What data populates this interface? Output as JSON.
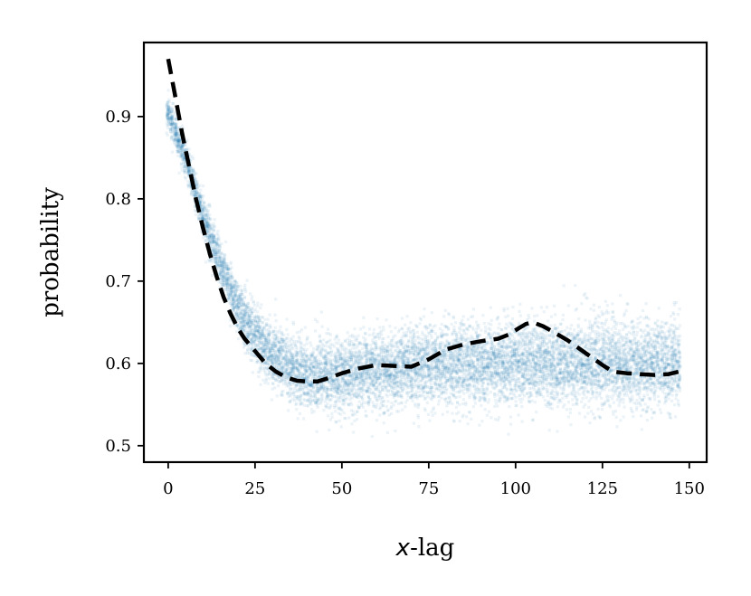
{
  "chart_data": {
    "type": "scatter",
    "title": "",
    "xlabel_var": "x",
    "xlabel_rest": "-lag",
    "ylabel": "probability",
    "xlim": [
      -7,
      155
    ],
    "ylim": [
      0.48,
      0.99
    ],
    "xticks": [
      0,
      25,
      50,
      75,
      100,
      125,
      150
    ],
    "yticks": [
      0.5,
      0.6,
      0.7,
      0.8,
      0.9
    ],
    "grid": false,
    "colors": {
      "scatter": "#1f77b4",
      "line": "#000000"
    },
    "scatter": {
      "description": "dense cloud of semi-transparent points around the fitted curve",
      "x_range": [
        0,
        147
      ],
      "points_per_lag": 70,
      "band_center": [
        [
          0,
          0.905
        ],
        [
          5,
          0.85
        ],
        [
          10,
          0.78
        ],
        [
          15,
          0.72
        ],
        [
          20,
          0.67
        ],
        [
          25,
          0.635
        ],
        [
          30,
          0.61
        ],
        [
          35,
          0.595
        ],
        [
          40,
          0.585
        ],
        [
          50,
          0.585
        ],
        [
          60,
          0.59
        ],
        [
          70,
          0.595
        ],
        [
          80,
          0.6
        ],
        [
          90,
          0.6
        ],
        [
          100,
          0.6
        ],
        [
          110,
          0.6
        ],
        [
          120,
          0.6
        ],
        [
          130,
          0.6
        ],
        [
          140,
          0.6
        ],
        [
          147,
          0.6
        ]
      ],
      "band_halfwidth": [
        [
          0,
          0.012
        ],
        [
          10,
          0.015
        ],
        [
          20,
          0.02
        ],
        [
          30,
          0.025
        ],
        [
          50,
          0.03
        ],
        [
          147,
          0.035
        ]
      ]
    },
    "series": [
      {
        "style": "dashed",
        "x": [
          0,
          2,
          4,
          6,
          8,
          10,
          12,
          14,
          16,
          18,
          20,
          22,
          25,
          28,
          31,
          34,
          37,
          40,
          43,
          46,
          50,
          55,
          60,
          65,
          70,
          75,
          80,
          85,
          90,
          95,
          98,
          101,
          103,
          105,
          108,
          111,
          115,
          120,
          125,
          128,
          132,
          136,
          140,
          144,
          147
        ],
        "y": [
          0.97,
          0.925,
          0.88,
          0.84,
          0.8,
          0.765,
          0.733,
          0.705,
          0.68,
          0.66,
          0.643,
          0.63,
          0.615,
          0.6,
          0.59,
          0.583,
          0.579,
          0.578,
          0.578,
          0.582,
          0.588,
          0.594,
          0.598,
          0.597,
          0.596,
          0.605,
          0.617,
          0.623,
          0.627,
          0.63,
          0.635,
          0.643,
          0.648,
          0.65,
          0.645,
          0.638,
          0.628,
          0.613,
          0.598,
          0.59,
          0.588,
          0.587,
          0.586,
          0.587,
          0.59
        ]
      }
    ]
  }
}
